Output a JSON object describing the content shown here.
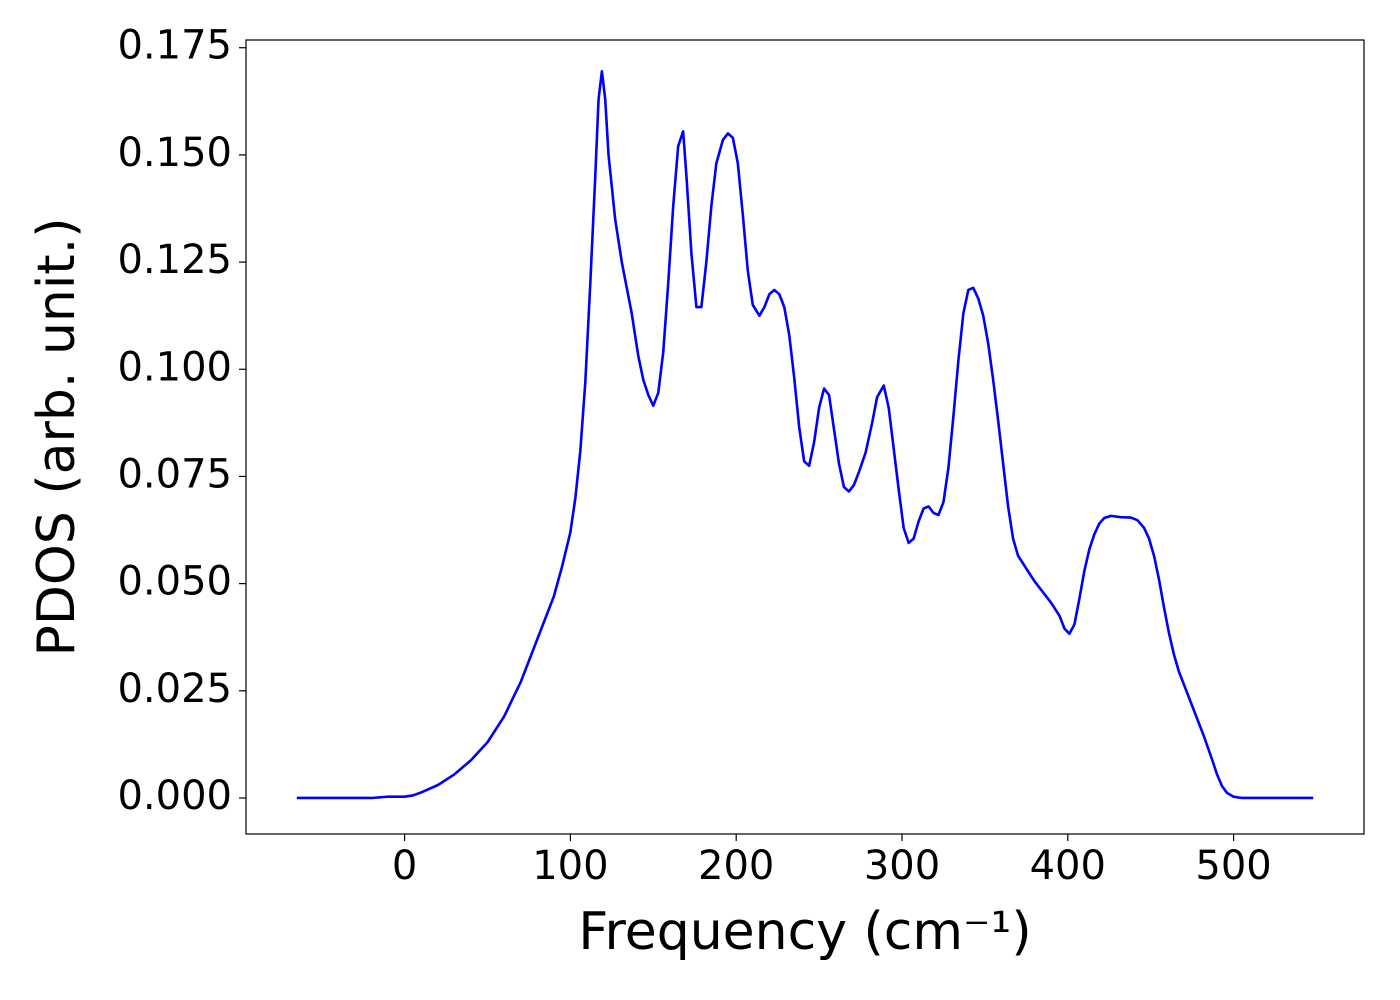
{
  "chart_data": {
    "type": "line",
    "xlabel": "Frequency (cm⁻¹)",
    "ylabel": "PDOS (arb. unit.)",
    "x": [
      -65,
      -40,
      -20,
      -10,
      0,
      5,
      10,
      20,
      30,
      40,
      50,
      60,
      70,
      80,
      90,
      95,
      100,
      103,
      106,
      109,
      112,
      115,
      117,
      119,
      121,
      123,
      127,
      131,
      137,
      141,
      144,
      147,
      150,
      153,
      156,
      159,
      162,
      165,
      168,
      170,
      173,
      176,
      179,
      182,
      185,
      188,
      192,
      195,
      198,
      201,
      204,
      207,
      210,
      214,
      217,
      220,
      223,
      226,
      229,
      232,
      235,
      238,
      241,
      244,
      247,
      250,
      253,
      256,
      259,
      262,
      265,
      268,
      271,
      274,
      278,
      282,
      285,
      289,
      292,
      295,
      298,
      301,
      304,
      307,
      310,
      313,
      316,
      319,
      322,
      325,
      328,
      331,
      334,
      337,
      340,
      343,
      346,
      349,
      352,
      355,
      358,
      361,
      364,
      367,
      370,
      375,
      380,
      385,
      390,
      395,
      398,
      401,
      404,
      407,
      410,
      413,
      416,
      419,
      422,
      426,
      432,
      438,
      442,
      446,
      449,
      452,
      455,
      458,
      461,
      464,
      467,
      472,
      477,
      482,
      487,
      490,
      493,
      496,
      500,
      505,
      520,
      548
    ],
    "series": [
      {
        "name": "PDOS",
        "color": "#0000ff",
        "values": [
          0,
          0,
          0,
          0.0003,
          0.0003,
          0.0006,
          0.0013,
          0.003,
          0.0055,
          0.0088,
          0.013,
          0.019,
          0.027,
          0.037,
          0.047,
          0.054,
          0.062,
          0.07,
          0.081,
          0.097,
          0.12,
          0.145,
          0.163,
          0.1695,
          0.163,
          0.15,
          0.135,
          0.125,
          0.113,
          0.103,
          0.0975,
          0.094,
          0.0915,
          0.0945,
          0.104,
          0.12,
          0.138,
          0.152,
          0.1555,
          0.145,
          0.127,
          0.1145,
          0.1145,
          0.125,
          0.138,
          0.148,
          0.1535,
          0.155,
          0.154,
          0.148,
          0.136,
          0.123,
          0.115,
          0.1125,
          0.1145,
          0.1175,
          0.1185,
          0.1175,
          0.1145,
          0.108,
          0.098,
          0.0865,
          0.0785,
          0.0775,
          0.083,
          0.091,
          0.0955,
          0.094,
          0.086,
          0.078,
          0.0725,
          0.0715,
          0.073,
          0.076,
          0.0805,
          0.0875,
          0.0935,
          0.0962,
          0.091,
          0.0815,
          0.072,
          0.063,
          0.0595,
          0.0605,
          0.0645,
          0.0675,
          0.068,
          0.0665,
          0.066,
          0.069,
          0.077,
          0.089,
          0.102,
          0.113,
          0.1185,
          0.119,
          0.1165,
          0.1125,
          0.106,
          0.0975,
          0.088,
          0.078,
          0.068,
          0.0605,
          0.0565,
          0.0535,
          0.0505,
          0.048,
          0.0455,
          0.0425,
          0.0395,
          0.0383,
          0.0405,
          0.0465,
          0.053,
          0.058,
          0.0615,
          0.064,
          0.0653,
          0.0658,
          0.0655,
          0.0654,
          0.0648,
          0.063,
          0.0605,
          0.0565,
          0.051,
          0.0445,
          0.0385,
          0.0335,
          0.0295,
          0.0245,
          0.0195,
          0.0145,
          0.009,
          0.0055,
          0.0028,
          0.0012,
          0.0003,
          0,
          0,
          0
        ]
      }
    ],
    "xlim": [
      -95.65,
      578.65
    ],
    "ylim": [
      -0.0084,
      0.1768
    ],
    "xticks": [
      0,
      100,
      200,
      300,
      400,
      500
    ],
    "yticks": [
      {
        "value": 0,
        "label": "0.000"
      },
      {
        "value": 0.025,
        "label": "0.025"
      },
      {
        "value": 0.05,
        "label": "0.050"
      },
      {
        "value": 0.075,
        "label": "0.075"
      },
      {
        "value": 0.1,
        "label": "0.100"
      },
      {
        "value": 0.125,
        "label": "0.125"
      },
      {
        "value": 0.15,
        "label": "0.150"
      },
      {
        "value": 0.175,
        "label": "0.175"
      }
    ],
    "grid": false
  }
}
